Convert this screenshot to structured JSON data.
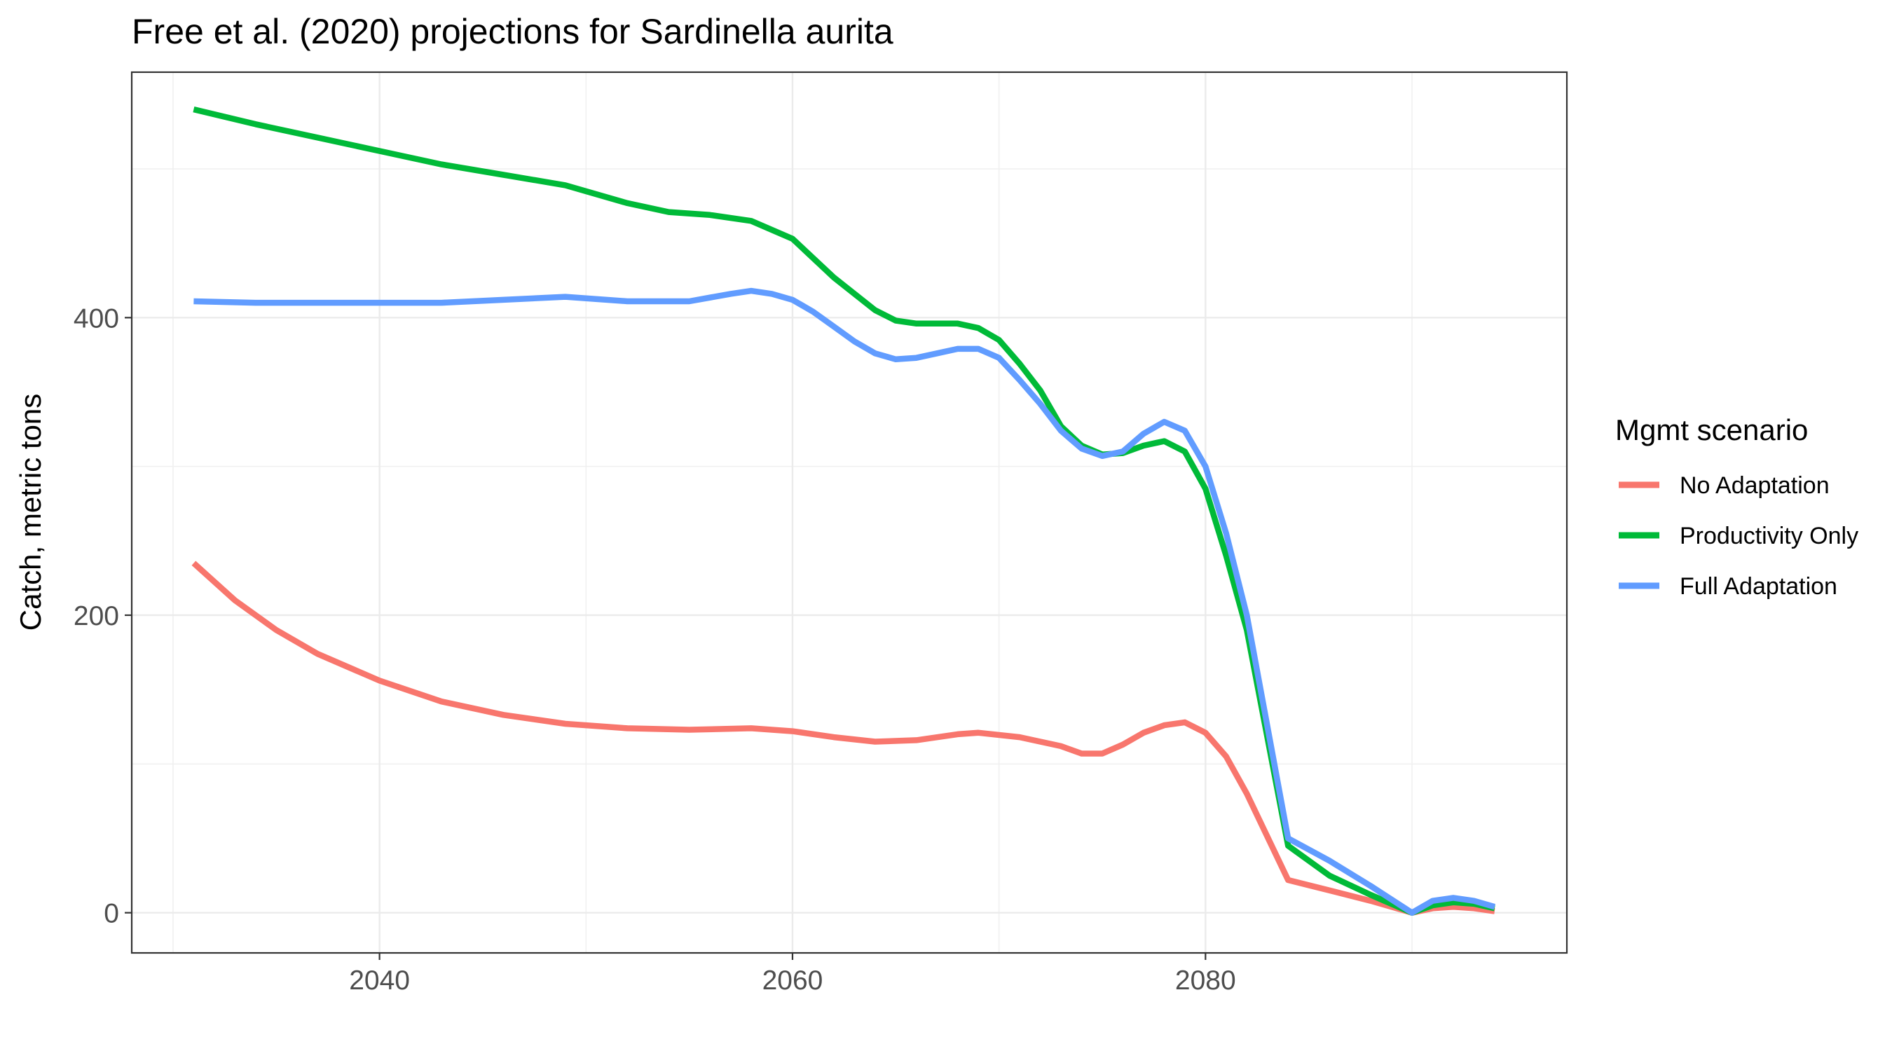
{
  "chart_data": {
    "type": "line",
    "title": "Free et al. (2020) projections for Sardinella aurita",
    "xlabel": "",
    "ylabel": "Catch, metric tons",
    "xlim": [
      2028,
      2097.5
    ],
    "ylim": [
      -27,
      565
    ],
    "x_ticks": [
      2040,
      2060,
      2080
    ],
    "y_ticks": [
      0,
      200,
      400
    ],
    "grid": true,
    "legend": {
      "title": "Mgmt scenario",
      "position": "right"
    },
    "series": [
      {
        "name": "No Adaptation",
        "color": "#F8766D",
        "x": [
          2031,
          2033,
          2035,
          2037,
          2040,
          2043,
          2046,
          2049,
          2052,
          2055,
          2058,
          2060,
          2062,
          2064,
          2066,
          2068,
          2069,
          2071,
          2073,
          2074,
          2075,
          2076,
          2077,
          2078,
          2079,
          2080,
          2081,
          2082,
          2084,
          2086,
          2088,
          2090,
          2091,
          2092,
          2093,
          2094
        ],
        "values": [
          235,
          210,
          190,
          174,
          156,
          142,
          133,
          127,
          124,
          123,
          124,
          122,
          118,
          115,
          116,
          120,
          121,
          118,
          112,
          107,
          107,
          113,
          121,
          126,
          128,
          121,
          105,
          80,
          22,
          15,
          8,
          0,
          3,
          4,
          3,
          1
        ]
      },
      {
        "name": "Productivity Only",
        "color": "#00BA38",
        "x": [
          2031,
          2034,
          2037,
          2040,
          2043,
          2046,
          2049,
          2052,
          2054,
          2056,
          2058,
          2060,
          2062,
          2064,
          2065,
          2066,
          2068,
          2069,
          2070,
          2071,
          2072,
          2073,
          2074,
          2075,
          2076,
          2077,
          2078,
          2079,
          2080,
          2081,
          2082,
          2084,
          2086,
          2088,
          2090,
          2091,
          2092,
          2093,
          2094
        ],
        "values": [
          540,
          530,
          521,
          512,
          503,
          496,
          489,
          477,
          471,
          469,
          465,
          453,
          427,
          405,
          398,
          396,
          396,
          393,
          385,
          369,
          351,
          327,
          314,
          308,
          309,
          314,
          317,
          310,
          285,
          240,
          190,
          45,
          25,
          12,
          0,
          5,
          7,
          6,
          3
        ]
      },
      {
        "name": "Full Adaptation",
        "color": "#619CFF",
        "x": [
          2031,
          2034,
          2037,
          2040,
          2043,
          2046,
          2049,
          2052,
          2055,
          2057,
          2058,
          2059,
          2060,
          2061,
          2062,
          2063,
          2064,
          2065,
          2066,
          2067,
          2068,
          2069,
          2070,
          2071,
          2072,
          2073,
          2074,
          2075,
          2076,
          2077,
          2078,
          2079,
          2080,
          2081,
          2082,
          2084,
          2086,
          2088,
          2090,
          2091,
          2092,
          2093,
          2094
        ],
        "values": [
          411,
          410,
          410,
          410,
          410,
          412,
          414,
          411,
          411,
          416,
          418,
          416,
          412,
          404,
          394,
          384,
          376,
          372,
          373,
          376,
          379,
          379,
          373,
          358,
          342,
          324,
          312,
          307,
          310,
          322,
          330,
          324,
          300,
          255,
          200,
          50,
          35,
          18,
          0,
          8,
          10,
          8,
          4
        ]
      }
    ]
  }
}
